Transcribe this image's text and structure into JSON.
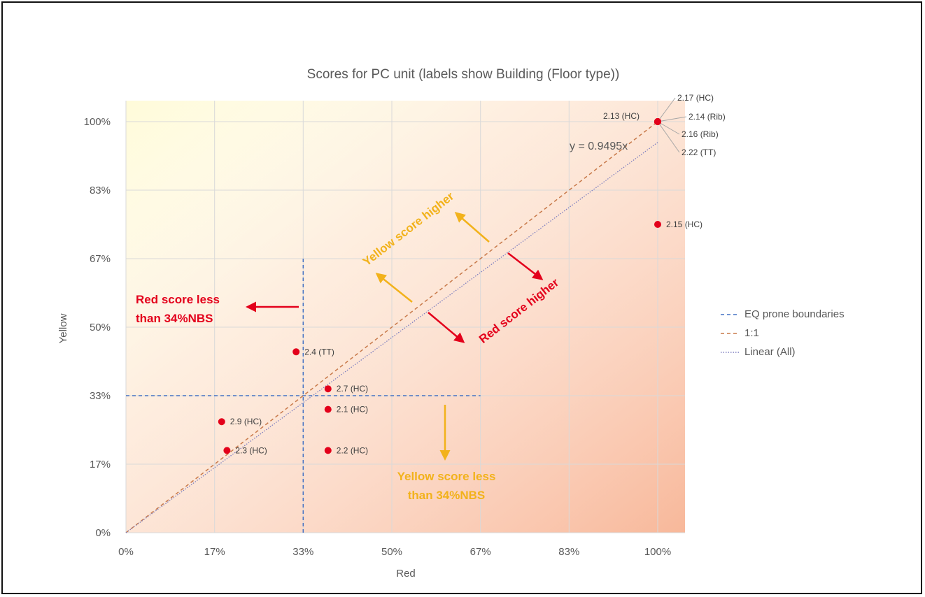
{
  "colors": {
    "point": "#e3001b",
    "boundary": "#4472c4",
    "one_to_one": "#c8794a",
    "linear": "#7f7fbf",
    "red_text": "#e3001b",
    "yellow_text": "#f2b21b",
    "grid": "#d9d9d9"
  },
  "chart_data": {
    "type": "scatter",
    "title": "Scores for PC unit (labels show Building (Floor type))",
    "xlabel": "Red",
    "ylabel": "Yellow",
    "xlim": [
      0,
      1
    ],
    "ylim": [
      0,
      1
    ],
    "x_ticks": [
      0,
      0.1667,
      0.3333,
      0.5,
      0.6667,
      0.8333,
      1
    ],
    "x_tick_labels": [
      "0%",
      "17%",
      "33%",
      "50%",
      "67%",
      "83%",
      "100%"
    ],
    "y_ticks": [
      0,
      0.1667,
      0.3333,
      0.5,
      0.6667,
      0.8333,
      1
    ],
    "y_tick_labels": [
      "0%",
      "17%",
      "33%",
      "50%",
      "67%",
      "83%",
      "100%"
    ],
    "grid": true,
    "legend_position": "right",
    "points": [
      {
        "x": 0.18,
        "y": 0.27,
        "label": "2.9 (HC)"
      },
      {
        "x": 0.19,
        "y": 0.2,
        "label": "2.3 (HC)"
      },
      {
        "x": 0.32,
        "y": 0.44,
        "label": "2.4 (TT)"
      },
      {
        "x": 0.38,
        "y": 0.35,
        "label": "2.7 (HC)"
      },
      {
        "x": 0.38,
        "y": 0.3,
        "label": "2.1 (HC)"
      },
      {
        "x": 0.38,
        "y": 0.2,
        "label": "2.2 (HC)"
      },
      {
        "x": 1.0,
        "y": 0.75,
        "label": "2.15 (HC)"
      },
      {
        "x": 1.0,
        "y": 1.0,
        "label": "2.13 (HC)"
      },
      {
        "x": 1.0,
        "y": 1.0,
        "label": "2.17 (HC)"
      },
      {
        "x": 1.0,
        "y": 1.0,
        "label": "2.14 (Rib)"
      },
      {
        "x": 1.0,
        "y": 1.0,
        "label": "2.16 (Rib)"
      },
      {
        "x": 1.0,
        "y": 1.0,
        "label": "2.22 (TT)"
      }
    ],
    "series": [
      {
        "name": "EQ prone boundaries",
        "style": "dashed",
        "color": "#4472c4"
      },
      {
        "name": "1:1",
        "style": "dashed",
        "color": "#c8794a"
      },
      {
        "name": "Linear (All)",
        "style": "dotted",
        "color": "#7f7fbf"
      }
    ],
    "boundaries": {
      "x": 0.3333,
      "y": 0.3333,
      "x_extent_max": 0.6667,
      "y_extent_max": 0.6667
    },
    "trendline": {
      "slope": 0.9495,
      "equation": "y = 0.9495x"
    },
    "annotations": {
      "yellow_higher": "Yellow score higher",
      "red_higher": "Red score higher",
      "red_less_line1": "Red score less",
      "red_less_line2": "than 34%NBS",
      "yellow_less_line1": "Yellow score less",
      "yellow_less_line2": "than 34%NBS"
    }
  }
}
